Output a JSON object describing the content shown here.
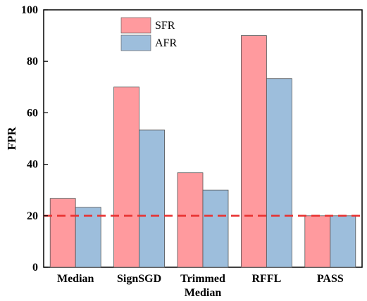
{
  "chart_data": {
    "type": "bar",
    "categories": [
      [
        "Median"
      ],
      [
        "SignSGD"
      ],
      [
        "Trimmed",
        "Median"
      ],
      [
        "RFFL"
      ],
      [
        "PASS"
      ]
    ],
    "series": [
      {
        "name": "SFR",
        "color": "#ff9a9e",
        "values": [
          26.7,
          70.0,
          36.7,
          90.0,
          20.0
        ]
      },
      {
        "name": "AFR",
        "color": "#9dbedc",
        "values": [
          23.3,
          53.3,
          30.0,
          73.3,
          20.0
        ]
      }
    ],
    "ylabel": "FPR",
    "xlabel": "",
    "ylim": [
      0,
      100
    ],
    "yticks": [
      0,
      20,
      40,
      60,
      80,
      100
    ],
    "reference_line": {
      "value": 20,
      "color": "#e8302f",
      "style": "dashed"
    },
    "legend_position": "top-center",
    "grid": false
  }
}
